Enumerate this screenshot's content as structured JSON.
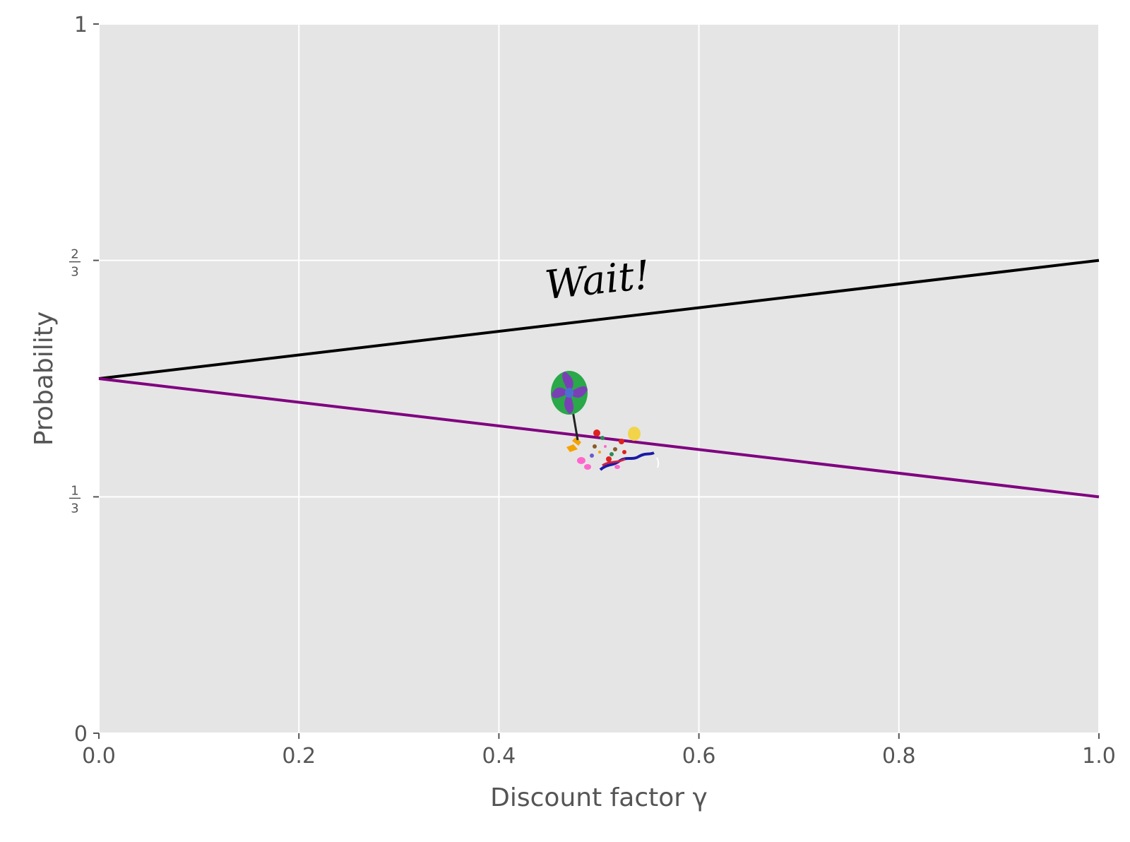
{
  "chart_data": {
    "type": "line",
    "title": "",
    "xlabel": "Discount factor γ",
    "ylabel": "Probability",
    "xlim": [
      0,
      1
    ],
    "ylim": [
      0,
      1
    ],
    "grid": true,
    "background": "#e5e5e5",
    "x_ticks": [
      {
        "value": 0.0,
        "label": "0.0"
      },
      {
        "value": 0.2,
        "label": "0.2"
      },
      {
        "value": 0.4,
        "label": "0.4"
      },
      {
        "value": 0.6,
        "label": "0.6"
      },
      {
        "value": 0.8,
        "label": "0.8"
      },
      {
        "value": 1.0,
        "label": "1.0"
      }
    ],
    "y_ticks": [
      {
        "value": 0,
        "label": "0"
      },
      {
        "value": 0.3333,
        "num": "1",
        "den": "3"
      },
      {
        "value": 0.6667,
        "num": "2",
        "den": "3"
      },
      {
        "value": 1,
        "label": "1"
      }
    ],
    "series": [
      {
        "color": "#000000",
        "x": [
          0,
          1
        ],
        "y": [
          0.5,
          0.6667
        ]
      },
      {
        "color": "#800080",
        "x": [
          0,
          1
        ],
        "y": [
          0.5,
          0.3333
        ]
      }
    ],
    "annotations": [
      {
        "text": "Wait!",
        "x": 0.5,
        "y": 0.62
      }
    ]
  },
  "icons": [
    "lollipop-icon",
    "candy-pile-icon"
  ]
}
